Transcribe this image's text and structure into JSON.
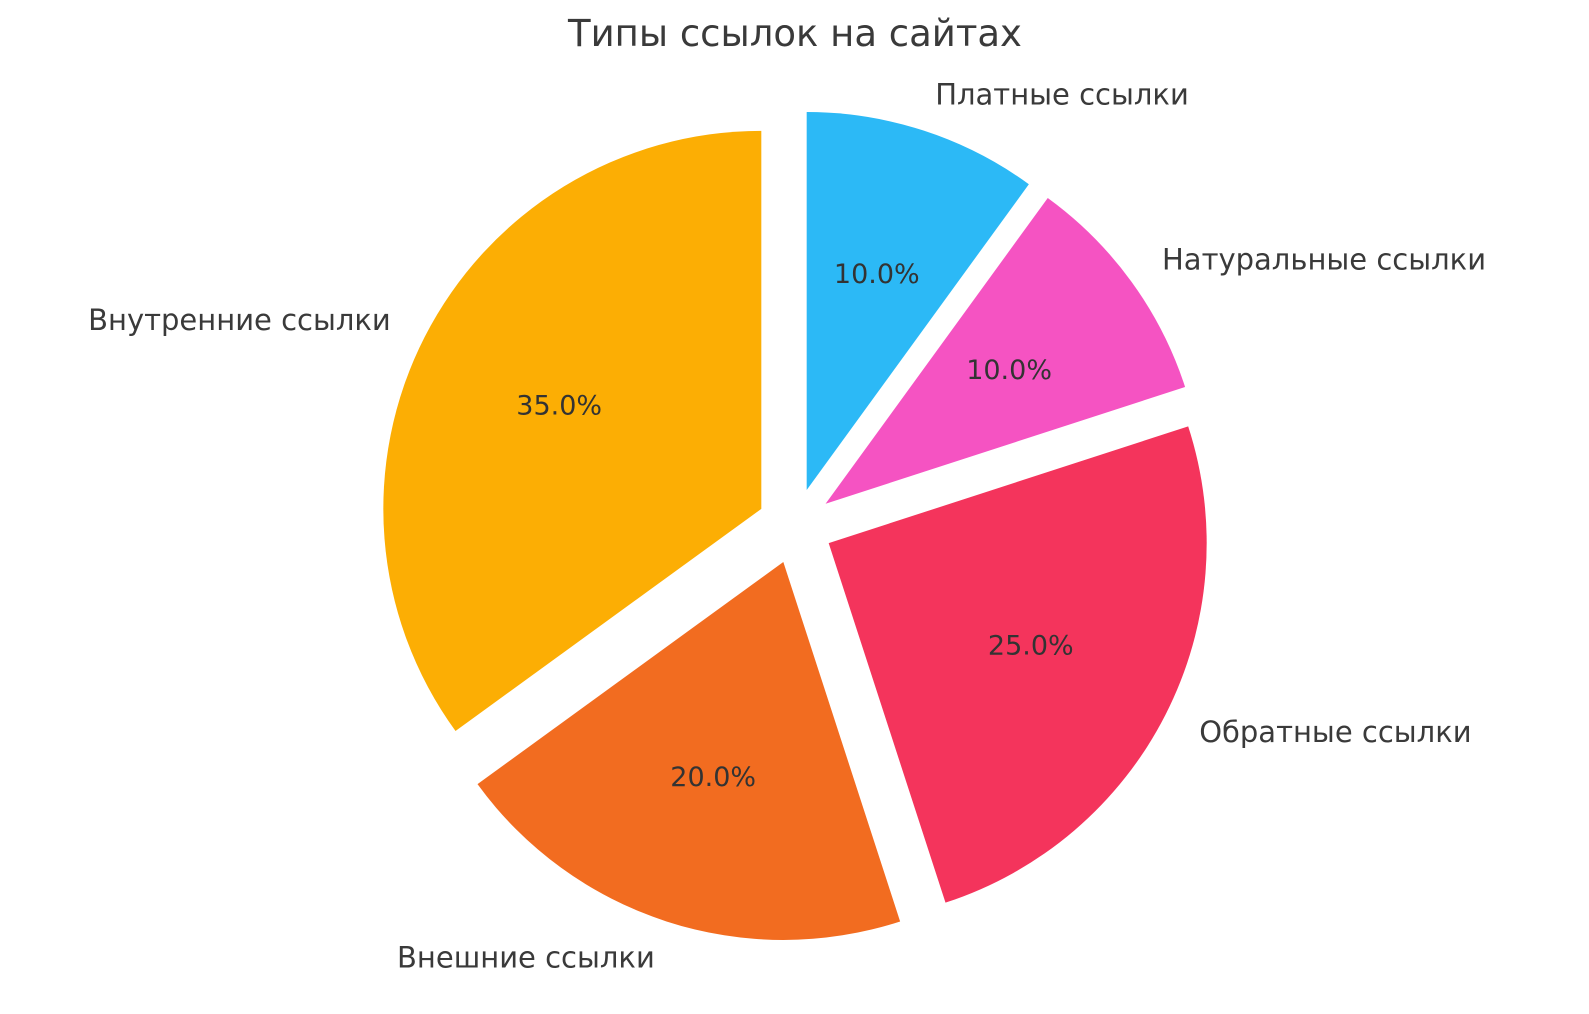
{
  "chart_data": {
    "type": "pie",
    "title": "Типы ссылок на сайтах",
    "start_angle_deg": 90,
    "direction": "clockwise",
    "explode": 0.1,
    "pct_distance": 0.6,
    "label_distance": 1.1,
    "legend_position": "none",
    "text_color": "#333333",
    "categories": [
      "Платные ссылки",
      "Натуральные ссылки",
      "Обратные ссылки",
      "Внешние ссылки",
      "Внутренние ссылки"
    ],
    "values": [
      10.0,
      10.0,
      25.0,
      20.0,
      35.0
    ],
    "slices": [
      {
        "label": "Платные ссылки",
        "value": 10.0,
        "pct_label": "10.0%",
        "color": "#2cb9f6"
      },
      {
        "label": "Натуральные ссылки",
        "value": 10.0,
        "pct_label": "10.0%",
        "color": "#f553c2"
      },
      {
        "label": "Обратные ссылки",
        "value": 25.0,
        "pct_label": "25.0%",
        "color": "#f4345c"
      },
      {
        "label": "Внешние ссылки",
        "value": 20.0,
        "pct_label": "20.0%",
        "color": "#f26c20"
      },
      {
        "label": "Внутренние ссылки",
        "value": 35.0,
        "pct_label": "35.0%",
        "color": "#fcae04"
      }
    ]
  }
}
